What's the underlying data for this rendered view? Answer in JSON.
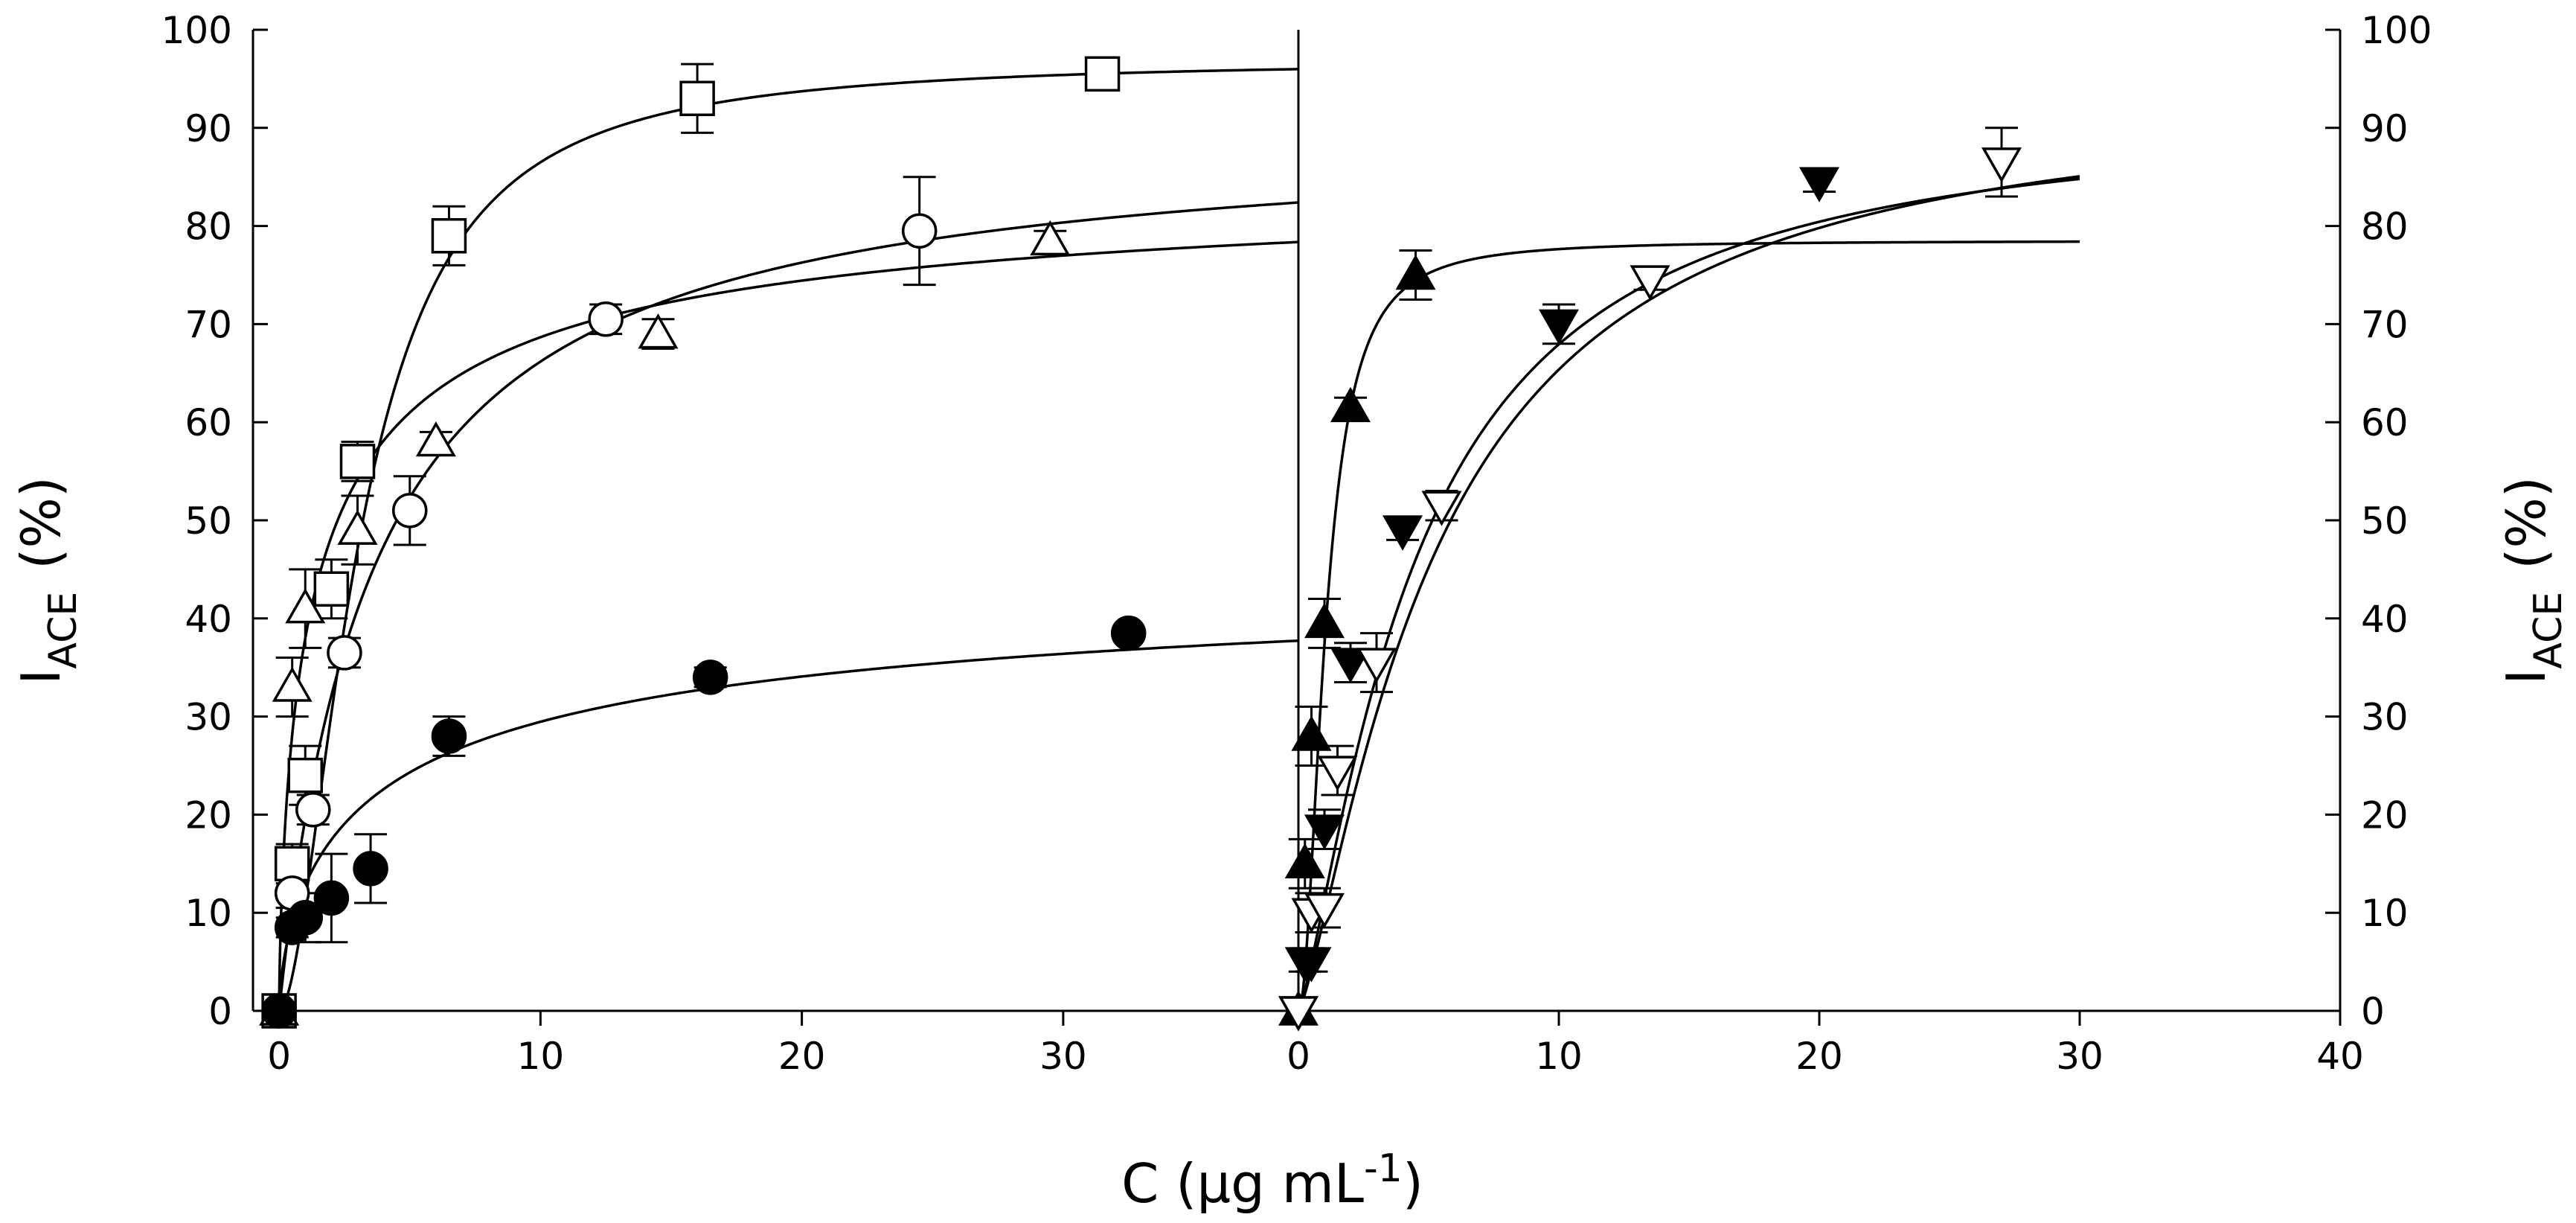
{
  "colors": {
    "ink": "#000000",
    "background": "#ffffff",
    "open_fill": "#ffffff",
    "filled": "#000000"
  },
  "chart_data": {
    "type": "scatter",
    "xlabel": {
      "main": "C (µg mL",
      "sup": "-1",
      "close": ")"
    },
    "ylabel_left": {
      "main": "I",
      "sub": "ACE",
      "unit": "(%)"
    },
    "ylabel_right": {
      "main": "I",
      "sub": "ACE",
      "unit": "(%)"
    },
    "ylim": [
      0,
      100
    ],
    "y_ticks": [
      "0",
      "10",
      "20",
      "30",
      "40",
      "50",
      "60",
      "70",
      "80",
      "90",
      "100"
    ],
    "grid": false,
    "panels": [
      {
        "name": "left",
        "xlim": [
          -1,
          39
        ],
        "x_ticks": [
          "0",
          "10",
          "20",
          "30"
        ],
        "series": [
          {
            "name": "open-square",
            "marker": "square",
            "fill": "open",
            "x": [
              0,
              0.5,
              1,
              2,
              3,
              6.5,
              16,
              31.5
            ],
            "y": [
              0,
              15,
              24,
              43,
              56,
              79,
              93,
              95.5
            ],
            "err": [
              0,
              2,
              3,
              3,
              2,
              3,
              3.5,
              1
            ],
            "fit": {
              "model": "hill",
              "Imax": 97,
              "IC50": 3.1,
              "n": 1.8
            }
          },
          {
            "name": "open-circle",
            "marker": "circle",
            "fill": "open",
            "x": [
              0,
              0.5,
              1.3,
              2.5,
              5,
              12.5,
              24.5
            ],
            "y": [
              0,
              12,
              20.5,
              36.5,
              51,
              70.5,
              79.5
            ],
            "err": [
              0,
              1.5,
              1.5,
              1.5,
              3.5,
              1.5,
              5.5
            ],
            "fit": {
              "model": "hill",
              "Imax": 90,
              "IC50": 3.6,
              "n": 1.0
            }
          },
          {
            "name": "open-triangle",
            "marker": "triangle-up",
            "fill": "open",
            "x": [
              0,
              0.5,
              1,
              3,
              6,
              14.5,
              29.5
            ],
            "y": [
              0,
              33,
              41,
              49,
              58,
              69,
              78.5
            ],
            "err": [
              0,
              3,
              4,
              3.5,
              1,
              1.5,
              1
            ],
            "fit": {
              "model": "hill",
              "Imax": 86,
              "IC50": 1.4,
              "n": 0.7
            }
          },
          {
            "name": "filled-circle",
            "marker": "circle",
            "fill": "filled",
            "x": [
              0,
              0.5,
              1,
              2,
              3.5,
              6.5,
              16.5,
              32.5
            ],
            "y": [
              0,
              8.5,
              9.5,
              11.5,
              14.5,
              28,
              34,
              38.5
            ],
            "err": [
              0,
              1,
              2.5,
              4.5,
              3.5,
              2,
              1,
              0.5
            ],
            "fit": {
              "model": "hill",
              "Imax": 47,
              "IC50": 4.5,
              "n": 0.65
            }
          }
        ]
      },
      {
        "name": "right",
        "xlim": [
          0,
          40
        ],
        "x_ticks": [
          "0",
          "10",
          "20",
          "30",
          "40"
        ],
        "series": [
          {
            "name": "filled-triangle-up",
            "marker": "triangle-up",
            "fill": "filled",
            "x": [
              0,
              0.25,
              0.5,
              1,
              2,
              4.5
            ],
            "y": [
              0,
              15,
              28,
              39.5,
              61.5,
              75
            ],
            "err": [
              0,
              2.5,
              3,
              2.5,
              1,
              2.5
            ],
            "fit": {
              "model": "hill",
              "Imax": 78.5,
              "IC50": 1.05,
              "n": 2.0,
              "xmax": 30
            }
          },
          {
            "name": "filled-triangle-down",
            "marker": "triangle-down",
            "fill": "filled",
            "x": [
              0,
              0.25,
              0.5,
              1,
              2,
              4,
              10,
              20
            ],
            "y": [
              0,
              5,
              5,
              18.5,
              35.5,
              49,
              70,
              84.5
            ],
            "err": [
              0,
              1,
              1,
              2,
              2,
              1,
              2,
              1
            ],
            "fit": {
              "model": "hill",
              "Imax": 92,
              "IC50": 4.5,
              "n": 1.3,
              "xmax": 30
            }
          },
          {
            "name": "open-triangle-down",
            "marker": "triangle-down",
            "fill": "open",
            "x": [
              0,
              0.5,
              1,
              1.5,
              3,
              5.5,
              13.5,
              27
            ],
            "y": [
              0,
              10,
              10.5,
              24.5,
              35.5,
              51.5,
              74.5,
              86.5
            ],
            "err": [
              0,
              2,
              2,
              2.5,
              3,
              1.5,
              1,
              3.5
            ],
            "fit": {
              "model": "hill",
              "Imax": 94,
              "IC50": 5.3,
              "n": 1.3,
              "xmax": 30
            }
          }
        ]
      }
    ]
  }
}
